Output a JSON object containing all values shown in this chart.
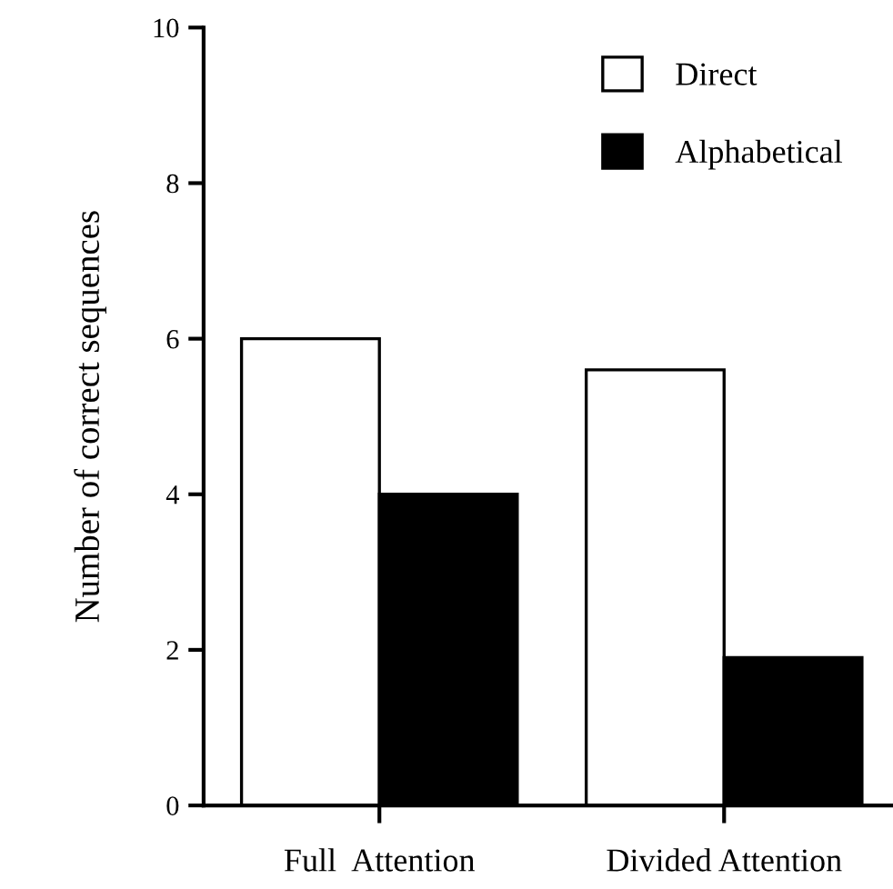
{
  "chart_data": {
    "type": "bar",
    "ylabel": "Number of correct sequences",
    "categories": [
      "Full  Attention",
      "Divided Attention"
    ],
    "series": [
      {
        "name": "Direct",
        "color": "#ffffff",
        "values": [
          6.0,
          5.6
        ]
      },
      {
        "name": "Alphabetical",
        "color": "#000000",
        "values": [
          4.0,
          1.9
        ]
      }
    ],
    "ylim": [
      0,
      10
    ],
    "yticks": [
      0,
      2,
      4,
      6,
      8,
      10
    ],
    "grid": false,
    "legend": "top right"
  }
}
